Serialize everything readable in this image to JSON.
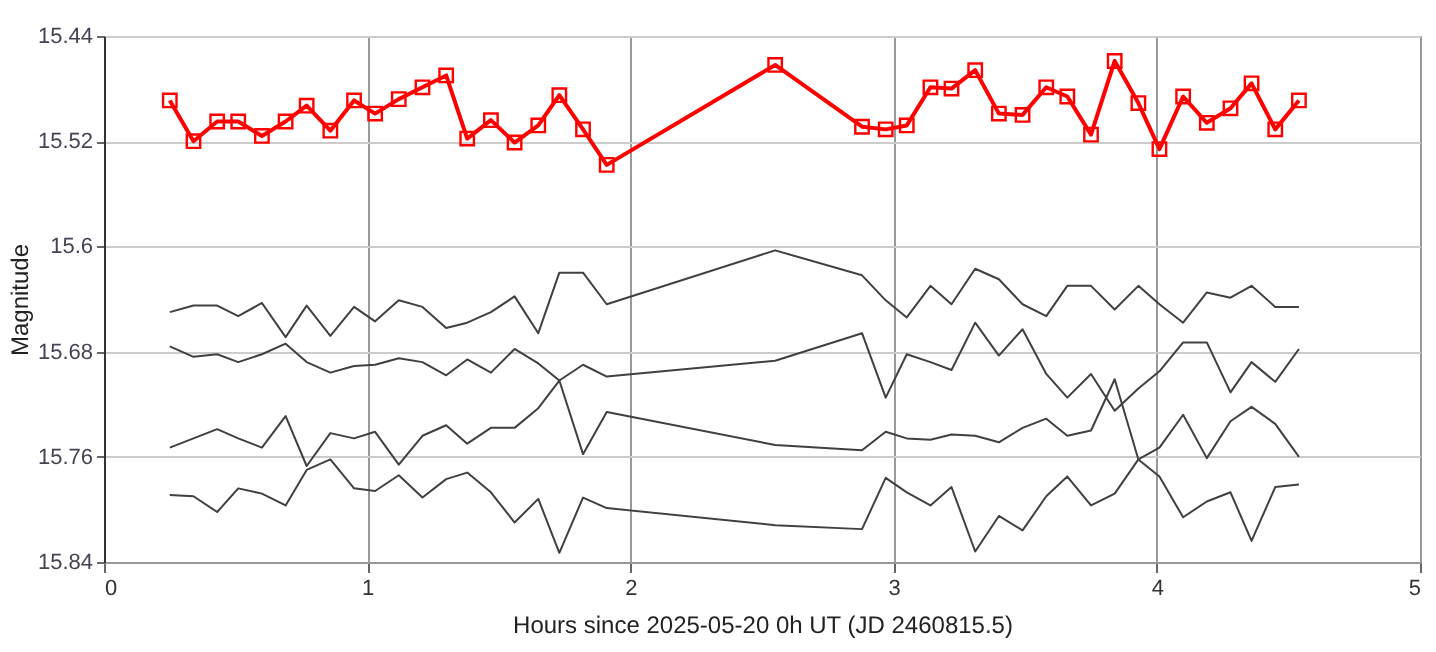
{
  "chart_data": {
    "type": "line",
    "xlabel": "Hours since 2025-05-20 0h UT (JD 2460815.5)",
    "ylabel": "Magnitude",
    "x": [
      0.25,
      0.34,
      0.43,
      0.51,
      0.6,
      0.69,
      0.77,
      0.86,
      0.95,
      1.03,
      1.12,
      1.21,
      1.3,
      1.38,
      1.47,
      1.56,
      1.65,
      1.73,
      1.82,
      1.91,
      2.55,
      2.88,
      2.97,
      3.05,
      3.14,
      3.22,
      3.31,
      3.4,
      3.49,
      3.58,
      3.66,
      3.75,
      3.84,
      3.93,
      4.01,
      4.1,
      4.19,
      4.28,
      4.36,
      4.45,
      4.54
    ],
    "series": [
      {
        "color": "#ff0000",
        "marker": "square",
        "values": [
          15.489,
          15.52,
          15.505,
          15.505,
          15.516,
          15.505,
          15.493,
          15.512,
          15.489,
          15.499,
          15.488,
          15.479,
          15.47,
          15.518,
          15.504,
          15.521,
          15.508,
          15.485,
          15.511,
          15.538,
          15.462,
          15.509,
          15.511,
          15.508,
          15.479,
          15.48,
          15.466,
          15.499,
          15.5,
          15.479,
          15.486,
          15.515,
          15.459,
          15.491,
          15.526,
          15.486,
          15.506,
          15.495,
          15.476,
          15.511,
          15.489
        ]
      },
      {
        "color": "#404040",
        "marker": "none",
        "values": [
          15.65,
          15.645,
          15.645,
          15.653,
          15.643,
          15.669,
          15.645,
          15.668,
          15.646,
          15.657,
          15.641,
          15.646,
          15.662,
          15.658,
          15.65,
          15.638,
          15.666,
          15.62,
          15.62,
          15.644,
          15.603,
          15.622,
          15.641,
          15.654,
          15.63,
          15.644,
          15.617,
          15.625,
          15.644,
          15.653,
          15.63,
          15.63,
          15.648,
          15.63,
          15.644,
          15.658,
          15.635,
          15.639,
          15.63,
          15.646,
          15.646
        ]
      },
      {
        "color": "#404040",
        "marker": "none",
        "values": [
          15.676,
          15.684,
          15.682,
          15.688,
          15.682,
          15.674,
          15.688,
          15.696,
          15.691,
          15.69,
          15.685,
          15.688,
          15.698,
          15.686,
          15.696,
          15.678,
          15.689,
          15.702,
          15.758,
          15.726,
          15.751,
          15.755,
          15.741,
          15.746,
          15.747,
          15.743,
          15.744,
          15.749,
          15.738,
          15.731,
          15.744,
          15.74,
          15.701,
          15.762,
          15.775,
          15.806,
          15.794,
          15.787,
          15.824,
          15.783,
          15.781
        ]
      },
      {
        "color": "#404040",
        "marker": "none",
        "values": [
          15.753,
          15.746,
          15.739,
          15.746,
          15.753,
          15.729,
          15.767,
          15.742,
          15.746,
          15.741,
          15.766,
          15.744,
          15.736,
          15.75,
          15.738,
          15.738,
          15.723,
          15.702,
          15.69,
          15.699,
          15.687,
          15.666,
          15.715,
          15.682,
          15.688,
          15.694,
          15.658,
          15.683,
          15.663,
          15.697,
          15.715,
          15.697,
          15.725,
          15.708,
          15.695,
          15.673,
          15.673,
          15.711,
          15.688,
          15.703,
          15.678
        ]
      },
      {
        "color": "#404040",
        "marker": "none",
        "values": [
          15.789,
          15.79,
          15.802,
          15.784,
          15.788,
          15.797,
          15.77,
          15.762,
          15.784,
          15.786,
          15.774,
          15.791,
          15.777,
          15.772,
          15.787,
          15.81,
          15.792,
          15.833,
          15.791,
          15.799,
          15.812,
          15.815,
          15.776,
          15.787,
          15.797,
          15.783,
          15.832,
          15.805,
          15.816,
          15.79,
          15.775,
          15.797,
          15.788,
          15.762,
          15.753,
          15.728,
          15.761,
          15.733,
          15.722,
          15.735,
          15.76
        ]
      }
    ],
    "xlim": [
      0,
      5
    ],
    "xticks": [
      0,
      1,
      2,
      3,
      4,
      5
    ],
    "ylim": [
      15.84,
      15.44
    ],
    "yticks": [
      15.44,
      15.52,
      15.6,
      15.68,
      15.76,
      15.84
    ],
    "grid": true
  }
}
